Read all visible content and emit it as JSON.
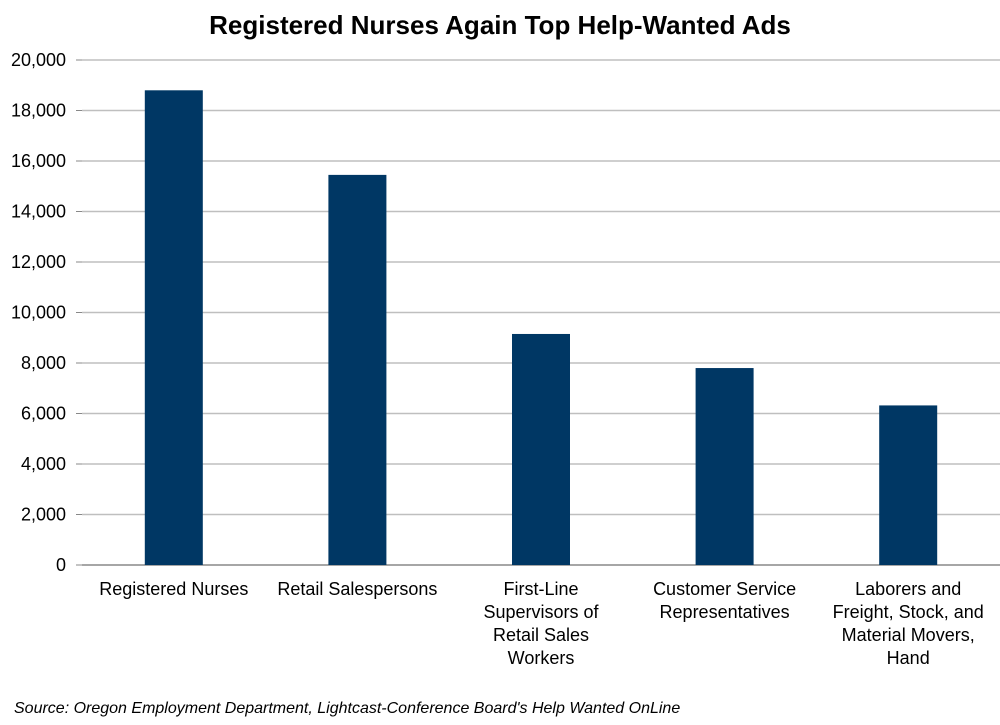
{
  "chart_data": {
    "type": "bar",
    "title": "Registered Nurses Again Top Help-Wanted Ads",
    "categories": [
      "Registered Nurses",
      "Retail Salespersons",
      "First-Line Supervisors of Retail Sales Workers",
      "Customer Service Representatives",
      "Laborers and Freight, Stock, and Material Movers, Hand"
    ],
    "category_lines": [
      [
        "Registered Nurses"
      ],
      [
        "Retail Salespersons"
      ],
      [
        "First-Line",
        "Supervisors of",
        "Retail Sales",
        "Workers"
      ],
      [
        "Customer Service",
        "Representatives"
      ],
      [
        "Laborers and",
        "Freight, Stock, and",
        "Material Movers,",
        "Hand"
      ]
    ],
    "values": [
      18800,
      15450,
      9150,
      7800,
      6320
    ],
    "ylim": [
      0,
      20000
    ],
    "yticks": [
      "0",
      "2,000",
      "4,000",
      "6,000",
      "8,000",
      "10,000",
      "12,000",
      "14,000",
      "16,000",
      "18,000",
      "20,000"
    ],
    "xlabel": "",
    "ylabel": "",
    "grid": true,
    "bar_color": "#003764",
    "grid_color": "#bfbfbf"
  },
  "source": "Source: Oregon Employment Department, Lightcast-Conference Board's Help Wanted OnLine"
}
